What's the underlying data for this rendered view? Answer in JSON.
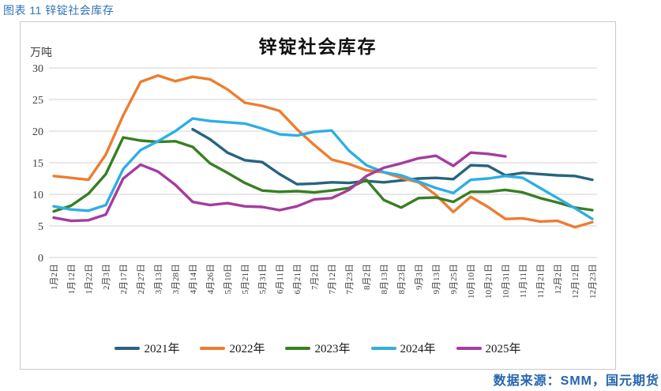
{
  "caption": "图表 11 锌锭社会库存",
  "source": "数据来源：SMM，国元期货",
  "chart_data": {
    "type": "line",
    "title": "锌锭社会库存",
    "unit": "万吨",
    "ylim": [
      0,
      30
    ],
    "yticks": [
      0,
      5,
      10,
      15,
      20,
      25,
      30
    ],
    "grid": "horizontal",
    "grid_color": "#D9D9D9",
    "legend_position": "bottom",
    "categories": [
      "1月2日",
      "1月12日",
      "1月22日",
      "2月3日",
      "2月17日",
      "2月27日",
      "3月13日",
      "3月28日",
      "4月14日",
      "4月26日",
      "5月10日",
      "5月21日",
      "5月31日",
      "6月11日",
      "6月21日",
      "7月2日",
      "7月12日",
      "7月23日",
      "8月2日",
      "8月13日",
      "8月23日",
      "9月3日",
      "9月13日",
      "9月25日",
      "10月10日",
      "10月21日",
      "10月31日",
      "11月11日",
      "11月21日",
      "12月2日",
      "12月12日",
      "12月23日"
    ],
    "series": [
      {
        "name": "2021年",
        "color": "#27647F",
        "values": [
          null,
          null,
          null,
          null,
          null,
          null,
          null,
          null,
          20.3,
          18.7,
          16.6,
          15.4,
          15.1,
          13.2,
          11.6,
          11.7,
          11.9,
          11.8,
          12.1,
          11.9,
          12.2,
          12.5,
          12.6,
          12.4,
          14.6,
          14.5,
          13.0,
          13.4,
          13.2,
          13.0,
          12.9,
          12.3
        ]
      },
      {
        "name": "2022年",
        "color": "#ED7D31",
        "values": [
          12.9,
          12.6,
          12.3,
          16.3,
          22.5,
          27.8,
          28.8,
          27.9,
          28.6,
          28.2,
          26.6,
          24.5,
          24.0,
          23.2,
          20.3,
          17.8,
          15.5,
          14.8,
          13.8,
          13.5,
          12.6,
          11.9,
          9.9,
          7.2,
          9.6,
          8.0,
          6.1,
          6.2,
          5.7,
          5.8,
          4.8,
          5.6
        ]
      },
      {
        "name": "2023年",
        "color": "#377F23",
        "values": [
          7.3,
          8.2,
          10.1,
          13.2,
          19.0,
          18.5,
          18.3,
          18.4,
          17.5,
          14.9,
          13.4,
          11.8,
          10.6,
          10.4,
          10.5,
          10.3,
          10.6,
          11.0,
          12.3,
          9.1,
          7.9,
          9.4,
          9.5,
          8.8,
          10.4,
          10.4,
          10.7,
          10.3,
          9.4,
          8.7,
          7.9,
          7.5
        ]
      },
      {
        "name": "2024年",
        "color": "#2FAEE3",
        "values": [
          8.1,
          7.6,
          7.4,
          8.3,
          14.0,
          17.0,
          18.4,
          20.0,
          22.0,
          21.6,
          21.4,
          21.2,
          20.4,
          19.5,
          19.3,
          19.9,
          20.1,
          16.9,
          14.6,
          13.5,
          13.0,
          12.0,
          11.0,
          10.2,
          12.3,
          12.5,
          12.9,
          12.6,
          11.0,
          9.4,
          7.8,
          6.1
        ]
      },
      {
        "name": "2025年",
        "color": "#A53C9E",
        "values": [
          6.3,
          5.8,
          5.9,
          6.8,
          12.5,
          14.7,
          13.6,
          11.5,
          8.8,
          8.3,
          8.6,
          8.1,
          8.0,
          7.5,
          8.1,
          9.2,
          9.4,
          10.7,
          12.9,
          14.2,
          14.9,
          15.7,
          16.1,
          14.5,
          16.6,
          16.4,
          16.0,
          null,
          null,
          null,
          null,
          null
        ]
      }
    ]
  }
}
